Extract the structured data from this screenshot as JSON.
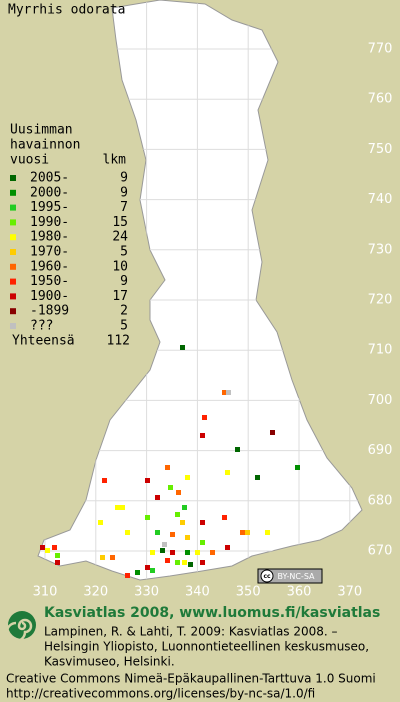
{
  "title": "Myrrhis odorata",
  "legend": {
    "header": [
      "Uusimman",
      "havainnon",
      "vuosi"
    ],
    "count_header": "lkm",
    "rows": [
      {
        "label": "2005-",
        "count": 9,
        "color": "#006600"
      },
      {
        "label": "2000-",
        "count": 9,
        "color": "#008f00"
      },
      {
        "label": "1995-",
        "count": 7,
        "color": "#22cc22"
      },
      {
        "label": "1990-",
        "count": 15,
        "color": "#66ee00"
      },
      {
        "label": "1980-",
        "count": 24,
        "color": "#ffff00"
      },
      {
        "label": "1970-",
        "count": 5,
        "color": "#ffcc00"
      },
      {
        "label": "1960-",
        "count": 10,
        "color": "#ff6600"
      },
      {
        "label": "1950-",
        "count": 9,
        "color": "#ff2200"
      },
      {
        "label": "1900-",
        "count": 17,
        "color": "#cc0000"
      },
      {
        "label": "-1899",
        "count": 2,
        "color": "#880000"
      },
      {
        "label": "???",
        "count": 5,
        "color": "#c0c0c0"
      }
    ],
    "total": {
      "label": "Yhteensä",
      "count": 112
    }
  },
  "grid": {
    "north": [
      770,
      760,
      750,
      740,
      730,
      720,
      710,
      700,
      690,
      680,
      670
    ],
    "east": [
      310,
      320,
      330,
      340,
      350,
      360,
      370
    ]
  },
  "license_badge": [
    "cc",
    "BY-NC-SA"
  ],
  "footer": {
    "site": "Kasviatlas 2008, www.luomus.fi/kasviatlas",
    "citation": [
      "Lampinen, R. & Lahti, T. 2009: Kasviatlas 2008. –",
      "Helsingin Yliopisto, Luonnontieteellinen keskusmuseo,",
      "Kasvimuseo, Helsinki."
    ],
    "license": [
      "Creative Commons Nimeä-Epäkaupallinen-Tarttuva 1.0 Suomi",
      "http://creativecommons.org/licenses/by-nc-sa/1.0/fi"
    ]
  }
}
